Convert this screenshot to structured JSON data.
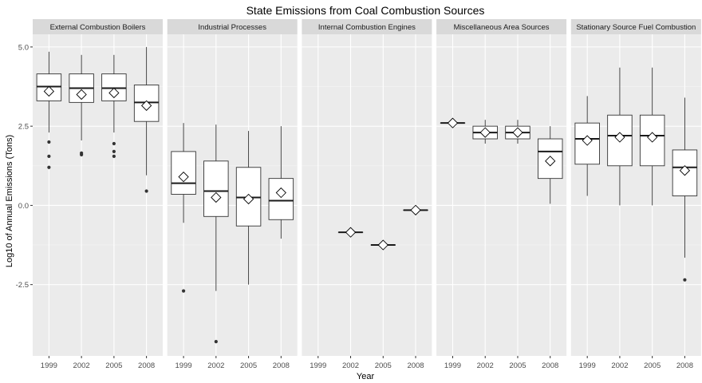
{
  "chart_data": {
    "type": "boxplot",
    "title": "State Emissions from Coal Combustion Sources",
    "xlabel": "Year",
    "ylabel": "Log10 of Annual Emissions (Tons)",
    "ylim": [
      -4.75,
      5.4
    ],
    "yticks": [
      -2.5,
      0.0,
      2.5,
      5.0
    ],
    "ytick_labels": [
      "-2.5",
      "0.0",
      "2.5",
      "5.0"
    ],
    "categories": [
      "1999",
      "2002",
      "2005",
      "2008"
    ],
    "grid": true,
    "panels": [
      {
        "name": "External Combustion Boilers",
        "boxes": [
          {
            "year": "1999",
            "min": 2.3,
            "q1": 3.3,
            "median": 3.75,
            "q3": 4.15,
            "max": 4.85,
            "mean": 3.6,
            "outliers": [
              2.0,
              1.55,
              1.2
            ]
          },
          {
            "year": "2002",
            "min": 2.05,
            "q1": 3.25,
            "median": 3.7,
            "q3": 4.15,
            "max": 4.75,
            "mean": 3.5,
            "outliers": [
              1.65,
              1.6
            ]
          },
          {
            "year": "2005",
            "min": 2.3,
            "q1": 3.3,
            "median": 3.7,
            "q3": 4.15,
            "max": 4.75,
            "mean": 3.55,
            "outliers": [
              1.95,
              1.7,
              1.55
            ]
          },
          {
            "year": "2008",
            "min": 0.95,
            "q1": 2.65,
            "median": 3.25,
            "q3": 3.8,
            "max": 5.0,
            "mean": 3.15,
            "outliers": [
              0.45
            ]
          }
        ]
      },
      {
        "name": "Industrial Processes",
        "boxes": [
          {
            "year": "1999",
            "min": -0.55,
            "q1": 0.35,
            "median": 0.7,
            "q3": 1.7,
            "max": 2.6,
            "mean": 0.9,
            "outliers": [
              -2.7
            ]
          },
          {
            "year": "2002",
            "min": -2.7,
            "q1": -0.35,
            "median": 0.45,
            "q3": 1.4,
            "max": 2.55,
            "mean": 0.25,
            "outliers": [
              -4.3
            ]
          },
          {
            "year": "2005",
            "min": -2.5,
            "q1": -0.65,
            "median": 0.25,
            "q3": 1.2,
            "max": 2.35,
            "mean": 0.2,
            "outliers": []
          },
          {
            "year": "2008",
            "min": -1.05,
            "q1": -0.45,
            "median": 0.15,
            "q3": 0.85,
            "max": 2.5,
            "mean": 0.4,
            "outliers": []
          }
        ]
      },
      {
        "name": "Internal Combustion Engines",
        "boxes": [
          {
            "year": "1999",
            "empty": true
          },
          {
            "year": "2002",
            "min": -0.85,
            "q1": -0.85,
            "median": -0.85,
            "q3": -0.85,
            "max": -0.85,
            "mean": -0.85,
            "outliers": []
          },
          {
            "year": "2005",
            "min": -1.25,
            "q1": -1.25,
            "median": -1.25,
            "q3": -1.25,
            "max": -1.25,
            "mean": -1.25,
            "outliers": []
          },
          {
            "year": "2008",
            "min": -0.15,
            "q1": -0.15,
            "median": -0.15,
            "q3": -0.15,
            "max": -0.15,
            "mean": -0.15,
            "outliers": []
          }
        ]
      },
      {
        "name": "Miscellaneous Area Sources",
        "boxes": [
          {
            "year": "1999",
            "min": 2.6,
            "q1": 2.6,
            "median": 2.6,
            "q3": 2.6,
            "max": 2.6,
            "mean": 2.6,
            "outliers": []
          },
          {
            "year": "2002",
            "min": 1.95,
            "q1": 2.1,
            "median": 2.3,
            "q3": 2.5,
            "max": 2.7,
            "mean": 2.3,
            "outliers": []
          },
          {
            "year": "2005",
            "min": 1.95,
            "q1": 2.1,
            "median": 2.3,
            "q3": 2.5,
            "max": 2.7,
            "mean": 2.3,
            "outliers": []
          },
          {
            "year": "2008",
            "min": 0.05,
            "q1": 0.85,
            "median": 1.7,
            "q3": 2.1,
            "max": 2.5,
            "mean": 1.4,
            "outliers": []
          }
        ]
      },
      {
        "name": "Stationary Source Fuel Combustion",
        "boxes": [
          {
            "year": "1999",
            "min": 0.3,
            "q1": 1.3,
            "median": 2.1,
            "q3": 2.6,
            "max": 3.45,
            "mean": 2.05,
            "outliers": []
          },
          {
            "year": "2002",
            "min": 0.0,
            "q1": 1.25,
            "median": 2.2,
            "q3": 2.85,
            "max": 4.35,
            "mean": 2.15,
            "outliers": []
          },
          {
            "year": "2005",
            "min": 0.0,
            "q1": 1.25,
            "median": 2.2,
            "q3": 2.85,
            "max": 4.35,
            "mean": 2.15,
            "outliers": []
          },
          {
            "year": "2008",
            "min": -1.65,
            "q1": 0.3,
            "median": 1.2,
            "q3": 1.75,
            "max": 3.4,
            "mean": 1.1,
            "outliers": [
              -2.35
            ]
          }
        ]
      }
    ],
    "colors": {
      "panel_bg": "#EBEBEB",
      "strip_bg": "#D9D9D9",
      "grid_major": "#FFFFFF",
      "box_fill": "#FFFFFF",
      "stroke": "#333333",
      "point": "#333333",
      "tick_text": "#4D4D4D"
    }
  }
}
